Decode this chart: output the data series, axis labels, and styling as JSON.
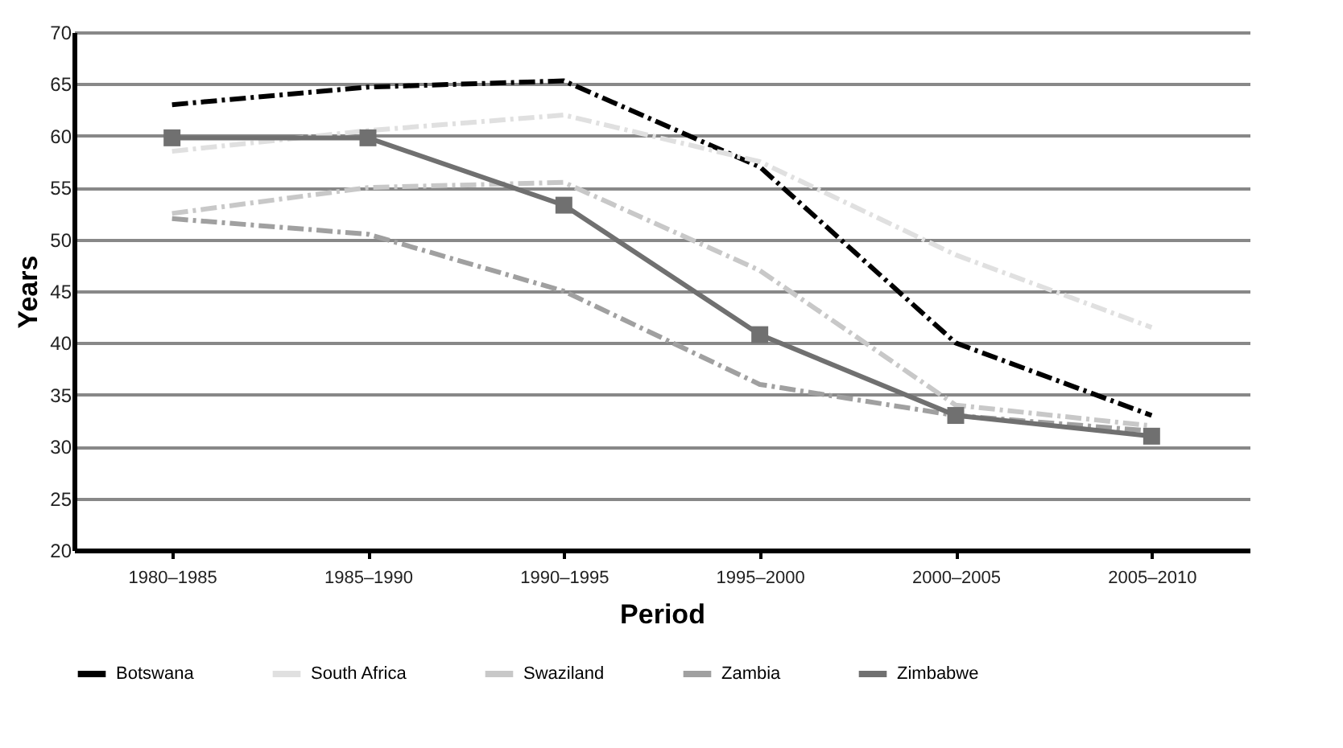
{
  "chart_data": {
    "type": "line",
    "xlabel": "Period",
    "ylabel": "Years",
    "categories": [
      "1980–1985",
      "1985–1990",
      "1990–1995",
      "1995–2000",
      "2000–2005",
      "2005–2010"
    ],
    "series": [
      {
        "name": "Botswana",
        "color": "#000000",
        "line_style": "dashed",
        "marker": "none",
        "values": [
          63,
          64.7,
          65.3,
          57,
          40,
          33
        ]
      },
      {
        "name": "South Africa",
        "color": "#e0e0e0",
        "line_style": "dashed",
        "marker": "none",
        "values": [
          58.5,
          60.5,
          62,
          57.5,
          48.5,
          41.5
        ]
      },
      {
        "name": "Swaziland",
        "color": "#c8c8c8",
        "line_style": "dashed",
        "marker": "none",
        "values": [
          52.5,
          55,
          55.5,
          47,
          34,
          32
        ]
      },
      {
        "name": "Zambia",
        "color": "#a0a0a0",
        "line_style": "dashed",
        "marker": "none",
        "values": [
          52,
          50.5,
          45,
          36,
          33,
          31.5
        ]
      },
      {
        "name": "Zimbabwe",
        "color": "#707070",
        "line_style": "solid",
        "marker": "square",
        "values": [
          59.8,
          59.8,
          53.3,
          40.8,
          33,
          31
        ]
      }
    ],
    "ylim": [
      20,
      70
    ],
    "yticks": [
      20,
      25,
      30,
      35,
      40,
      45,
      50,
      55,
      60,
      65,
      70
    ],
    "grid": "y",
    "legend": "bottom"
  }
}
